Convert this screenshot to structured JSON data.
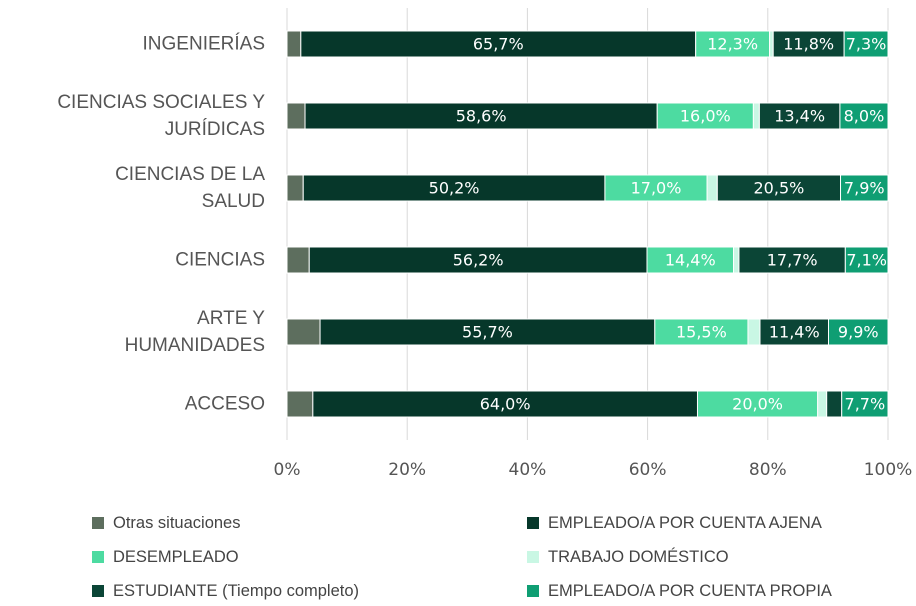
{
  "chart_data": {
    "type": "stacked_barh",
    "categories": [
      "INGENIERÍAS",
      "CIENCIAS SOCIALES Y JURÍDICAS",
      "CIENCIAS DE LA SALUD",
      "CIENCIAS",
      "ARTE Y HUMANIDADES",
      "ACCESO"
    ],
    "series": [
      {
        "name": "Otras situaciones",
        "color": "#5d6e5e",
        "values": [
          2.3,
          3.0,
          2.7,
          3.7,
          5.5,
          4.3
        ],
        "value_labels": [
          null,
          null,
          null,
          null,
          null,
          null
        ]
      },
      {
        "name": "EMPLEADO/A POR CUENTA AJENA",
        "color": "#06372a",
        "values": [
          65.7,
          58.6,
          50.2,
          56.2,
          55.7,
          64.0
        ],
        "value_labels": [
          "65,7%",
          "58,6%",
          "50,2%",
          "56,2%",
          "55,7%",
          "64,0%"
        ]
      },
      {
        "name": "DESEMPLEADO",
        "color": "#4ddba1",
        "values": [
          12.3,
          16.0,
          17.0,
          14.4,
          15.5,
          20.0
        ],
        "value_labels": [
          "12,3%",
          "16,0%",
          "17,0%",
          "14,4%",
          "15,5%",
          "20,0%"
        ]
      },
      {
        "name": "TRABAJO DOMÉSTICO",
        "color": "#c9f7e4",
        "values": [
          0.6,
          1.0,
          1.7,
          0.9,
          2.0,
          1.5
        ],
        "value_labels": [
          null,
          null,
          null,
          null,
          null,
          null
        ]
      },
      {
        "name": "ESTUDIANTE (Tiempo completo)",
        "color": "#0b4536",
        "values": [
          11.8,
          13.4,
          20.5,
          17.7,
          11.4,
          2.5
        ],
        "value_labels": [
          "11,8%",
          "13,4%",
          "20,5%",
          "17,7%",
          "11,4%",
          null
        ]
      },
      {
        "name": "EMPLEADO/A POR CUENTA PROPIA",
        "color": "#0f9e73",
        "values": [
          7.3,
          8.0,
          7.9,
          7.1,
          9.9,
          7.7
        ],
        "value_labels": [
          "7,3%",
          "8,0%",
          "7,9%",
          "7,1%",
          "9,9%",
          "7,7%"
        ]
      }
    ],
    "xlim": [
      0,
      100
    ],
    "xticks": [
      {
        "value": 0,
        "label": "0%"
      },
      {
        "value": 20,
        "label": "20%"
      },
      {
        "value": 40,
        "label": "40%"
      },
      {
        "value": 60,
        "label": "60%"
      },
      {
        "value": 80,
        "label": "80%"
      },
      {
        "value": 100,
        "label": "100%"
      }
    ],
    "grid": true
  }
}
